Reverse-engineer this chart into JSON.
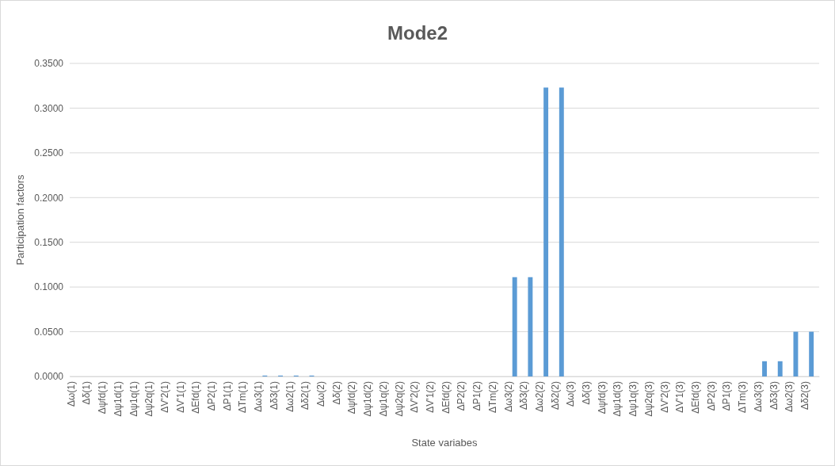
{
  "chart_data": {
    "type": "bar",
    "title": "Mode2",
    "xlabel": "State variabes",
    "ylabel": "Participation factors",
    "categories": [
      "Δω(1)",
      "Δδ(1)",
      "Δψfd(1)",
      "Δψ1d(1)",
      "Δψ1q(1)",
      "Δψ2q(1)",
      "ΔV'2(1)",
      "ΔV'1(1)",
      "ΔEfd(1)",
      "ΔP2(1)",
      "ΔP1(1)",
      "ΔTm(1)",
      "Δω3(1)",
      "Δδ3(1)",
      "Δω2(1)",
      "Δδ2(1)",
      "Δω(2)",
      "Δδ(2)",
      "Δψfd(2)",
      "Δψ1d(2)",
      "Δψ1q(2)",
      "Δψ2q(2)",
      "ΔV'2(2)",
      "ΔV'1(2)",
      "ΔEfd(2)",
      "ΔP2(2)",
      "ΔP1(2)",
      "ΔTm(2)",
      "Δω3(2)",
      "Δδ3(2)",
      "Δω2(2)",
      "Δδ2(2)",
      "Δω(3)",
      "Δδ(3)",
      "Δψfd(3)",
      "Δψ1d(3)",
      "Δψ1q(3)",
      "Δψ2q(3)",
      "ΔV'2(3)",
      "ΔV'1(3)",
      "ΔEfd(3)",
      "ΔP2(3)",
      "ΔP1(3)",
      "ΔTm(3)",
      "Δω3(3)",
      "Δδ3(3)",
      "Δω2(3)",
      "Δδ2(3)"
    ],
    "values": [
      0,
      0,
      0,
      0,
      0,
      0,
      0,
      0,
      0,
      0,
      0,
      0,
      0.001,
      0.001,
      0.001,
      0.001,
      0,
      0,
      0,
      0,
      0,
      0,
      0,
      0,
      0,
      0,
      0,
      0,
      0.111,
      0.111,
      0.323,
      0.323,
      0,
      0,
      0,
      0,
      0,
      0,
      0,
      0,
      0,
      0,
      0,
      0,
      0.017,
      0.017,
      0.05,
      0.05
    ],
    "color": "#5b9bd5",
    "ylim": [
      0,
      0.35
    ],
    "yticks": [
      {
        "value": 0,
        "label": "0.0000"
      },
      {
        "value": 0.05,
        "label": "0.0500"
      },
      {
        "value": 0.1,
        "label": "0.1000"
      },
      {
        "value": 0.15,
        "label": "0.1500"
      },
      {
        "value": 0.2,
        "label": "0.2000"
      },
      {
        "value": 0.25,
        "label": "0.2500"
      },
      {
        "value": 0.3,
        "label": "0.3000"
      },
      {
        "value": 0.35,
        "label": "0.3500"
      }
    ],
    "grid": "y"
  }
}
